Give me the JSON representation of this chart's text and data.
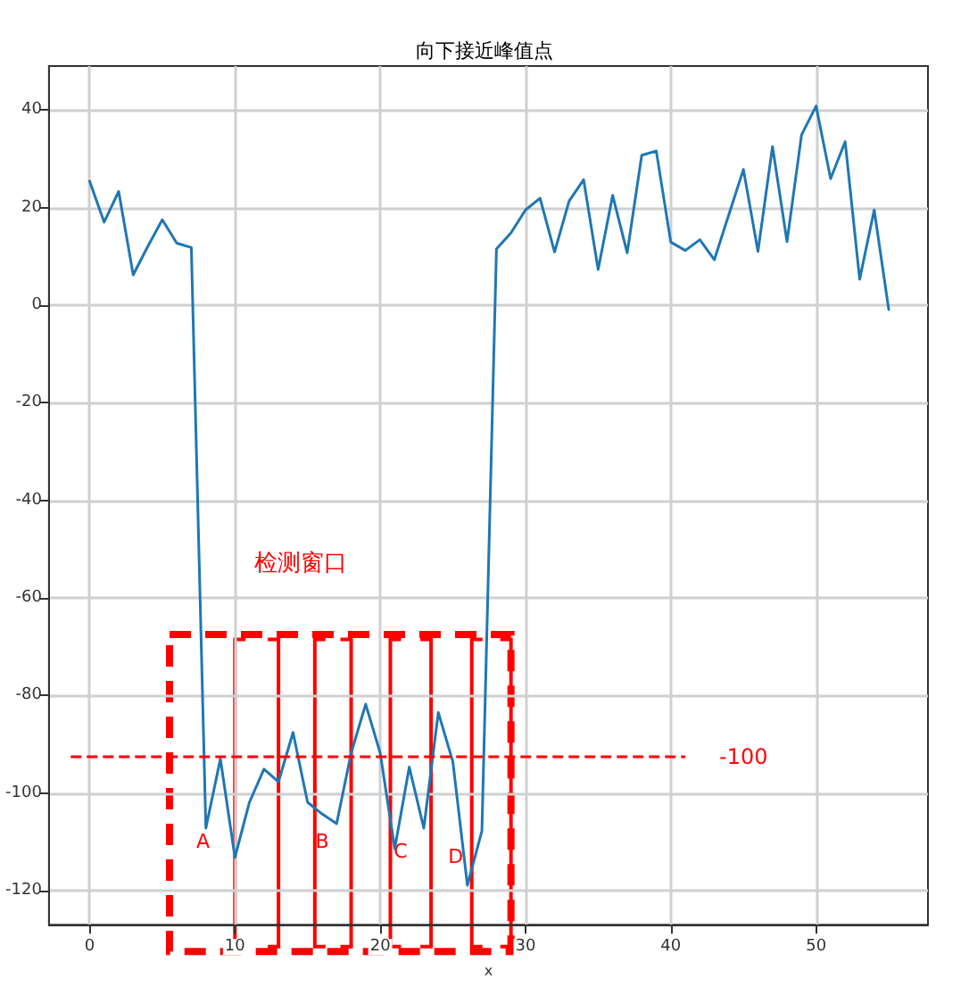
{
  "chart_data": {
    "type": "line",
    "title": "向下接近峰值点",
    "xlabel": "x",
    "x": [
      0,
      1,
      2,
      3,
      4,
      5,
      6,
      7,
      8,
      9,
      10,
      11,
      12,
      13,
      14,
      15,
      16,
      17,
      18,
      19,
      20,
      21,
      22,
      23,
      24,
      25,
      26,
      27,
      28,
      29,
      30,
      31,
      32,
      33,
      34,
      35,
      36,
      37,
      38,
      39,
      40,
      41,
      42,
      43,
      44,
      45,
      46,
      47,
      48,
      49,
      50,
      51,
      52,
      53,
      54,
      55
    ],
    "series": [
      {
        "color": "#1f77b4",
        "values": [
          25.4,
          17,
          23.3,
          6.2,
          12,
          17.5,
          12.7,
          11.8,
          -107.2,
          -93,
          -113.2,
          -101.9,
          -95.1,
          -97.7,
          -87.6,
          -101.9,
          -104.3,
          -106.3,
          -91.8,
          -81.8,
          -91.8,
          -111.4,
          -94.7,
          -107.2,
          -83.5,
          -93.6,
          -118.9,
          -107.8,
          11.5,
          14.8,
          19.5,
          21.9,
          10.9,
          21.3,
          25.7,
          7.3,
          22.5,
          10.7,
          30.7,
          31.6,
          12.9,
          11.2,
          13.4,
          9.3,
          18.6,
          27.8,
          11,
          32.5,
          13,
          34.9,
          40.8,
          25.9,
          33.5,
          5.3,
          19.5,
          -0.9
        ]
      }
    ],
    "xlim": [
      -2.8,
      57.7
    ],
    "ylim": [
      -127,
      49
    ],
    "xticks": [
      0,
      10,
      20,
      30,
      40,
      50
    ],
    "yticks": [
      -120,
      -100,
      -80,
      -60,
      -40,
      -20,
      0,
      20,
      40
    ],
    "grid": true,
    "marker": "none",
    "line_style": "solid",
    "ref_lines": [
      {
        "axis": "y",
        "value": -92.6,
        "color": "#ff0000",
        "line_style": "dashed"
      }
    ],
    "annotations": [
      "检测窗口",
      "-100",
      "A",
      "B",
      "C",
      "D"
    ]
  }
}
